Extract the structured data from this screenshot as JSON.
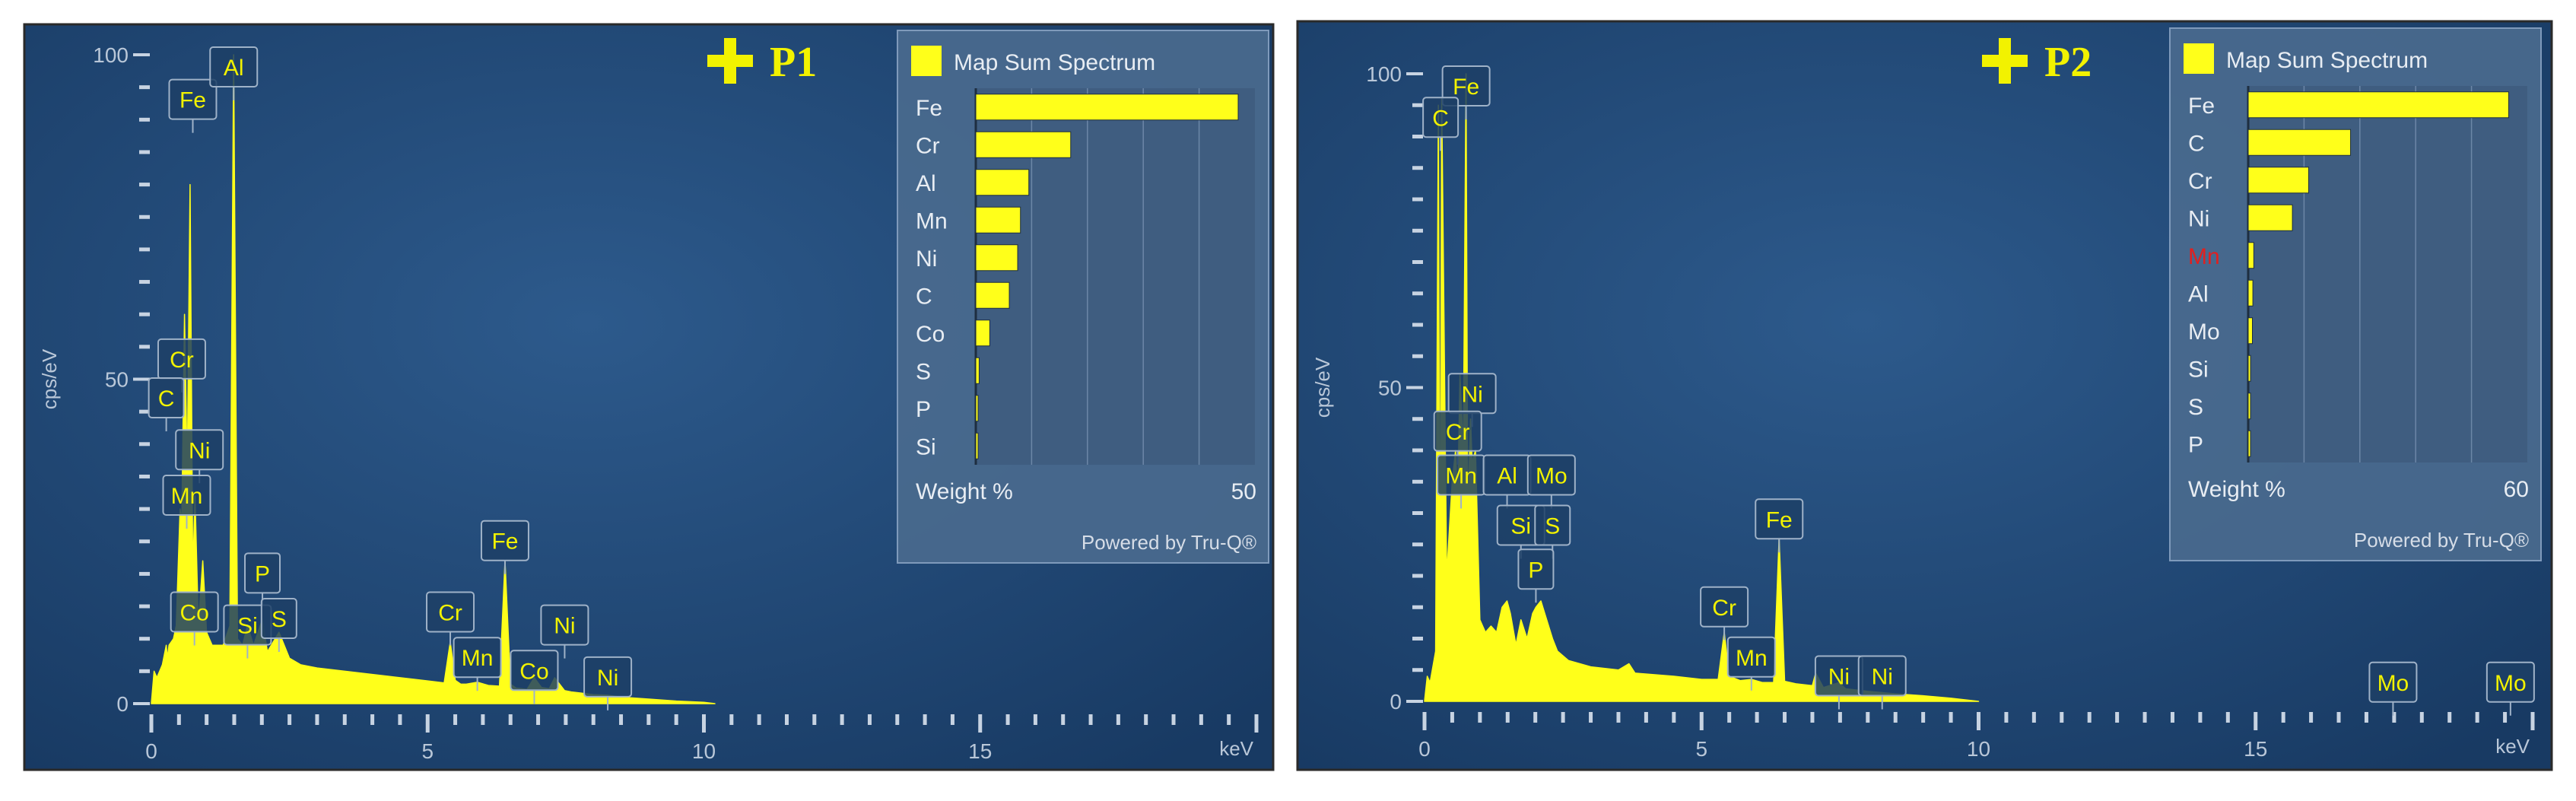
{
  "chart_data": [
    {
      "type": "area",
      "marker": "P1",
      "xlabel": "keV",
      "ylabel": "cps/eV",
      "xlim": [
        0,
        20
      ],
      "ylim": [
        0,
        100
      ],
      "xticks": [
        "0",
        "5",
        "10",
        "15"
      ],
      "yticks": [
        "0",
        "50",
        "100"
      ],
      "series": [
        {
          "x": [
            0,
            0.05,
            0.1,
            0.2,
            0.27,
            0.29,
            0.32,
            0.4,
            0.45,
            0.52,
            0.55,
            0.6,
            0.65,
            0.7,
            0.75,
            0.79,
            0.85,
            0.93,
            1.0,
            1.1,
            1.2,
            1.3,
            1.42,
            1.49,
            1.56,
            1.65,
            1.74,
            1.85,
            2.01,
            2.1,
            2.31,
            2.5,
            2.7,
            3.0,
            3.5,
            4.0,
            4.5,
            5.0,
            5.3,
            5.41,
            5.5,
            5.6,
            5.7,
            5.9,
            6.1,
            6.3,
            6.4,
            6.5,
            6.6,
            6.8,
            6.93,
            7.06,
            7.2,
            7.3,
            7.48,
            7.6,
            8.0,
            8.26,
            8.5,
            9.0,
            9.5,
            10.0,
            10.2
          ],
          "y": [
            0,
            5,
            4,
            6,
            9,
            7,
            9,
            10,
            12,
            30,
            28,
            60,
            35,
            80,
            20,
            32,
            12,
            22,
            11,
            9,
            9,
            9,
            12,
            100,
            10,
            9,
            12,
            9,
            13,
            8,
            11,
            7,
            6,
            5.5,
            5,
            4.5,
            4,
            3.5,
            3.2,
            9.5,
            3.6,
            3,
            3,
            3.3,
            2.8,
            2.7,
            22,
            3,
            2.4,
            2.2,
            4,
            2.5,
            2.3,
            4,
            2,
            1.8,
            1.4,
            1.3,
            1,
            0.7,
            0.4,
            0.2,
            0
          ]
        }
      ],
      "peak_labels": [
        {
          "element": "Fe",
          "x": 0.75,
          "y": 95
        },
        {
          "element": "Al",
          "x": 1.49,
          "y": 100
        },
        {
          "element": "Cr",
          "x": 0.55,
          "y": 55
        },
        {
          "element": "C",
          "x": 0.27,
          "y": 49
        },
        {
          "element": "Ni",
          "x": 0.87,
          "y": 41
        },
        {
          "element": "Mn",
          "x": 0.64,
          "y": 34
        },
        {
          "element": "P",
          "x": 2.01,
          "y": 22
        },
        {
          "element": "Co",
          "x": 0.78,
          "y": 16
        },
        {
          "element": "Si",
          "x": 1.74,
          "y": 14
        },
        {
          "element": "S",
          "x": 2.31,
          "y": 15
        },
        {
          "element": "Fe",
          "x": 6.4,
          "y": 27
        },
        {
          "element": "Cr",
          "x": 5.41,
          "y": 16
        },
        {
          "element": "Ni",
          "x": 7.48,
          "y": 14
        },
        {
          "element": "Mn",
          "x": 5.9,
          "y": 9
        },
        {
          "element": "Co",
          "x": 6.93,
          "y": 7
        },
        {
          "element": "Ni",
          "x": 8.26,
          "y": 6
        }
      ],
      "legend": {
        "title": "Map Sum Spectrum",
        "xlabel": "Weight %",
        "xmax_label": "50",
        "xmax": 50,
        "footer": "Powered by Tru-Q®",
        "categories": [
          "Fe",
          "Cr",
          "Al",
          "Mn",
          "Ni",
          "C",
          "Co",
          "S",
          "P",
          "Si"
        ],
        "values": [
          47,
          17,
          9.5,
          8,
          7.5,
          6,
          2.5,
          0.6,
          0.4,
          0.3
        ],
        "label_colors": [
          "#e8edf3",
          "#e8edf3",
          "#e8edf3",
          "#e8edf3",
          "#e8edf3",
          "#e8edf3",
          "#e8edf3",
          "#e8edf3",
          "#e8edf3",
          "#e8edf3"
        ]
      }
    },
    {
      "type": "area",
      "marker": "P2",
      "xlabel": "keV",
      "ylabel": "cps/eV",
      "xlim": [
        0,
        20
      ],
      "ylim": [
        0,
        100
      ],
      "xticks": [
        "0",
        "5",
        "10",
        "15"
      ],
      "yticks": [
        "0",
        "50",
        "100"
      ],
      "series": [
        {
          "x": [
            0,
            0.05,
            0.1,
            0.2,
            0.25,
            0.28,
            0.31,
            0.4,
            0.5,
            0.56,
            0.6,
            0.64,
            0.7,
            0.75,
            0.78,
            0.83,
            0.86,
            0.92,
            1.0,
            1.1,
            1.2,
            1.3,
            1.4,
            1.49,
            1.55,
            1.65,
            1.74,
            1.85,
            1.95,
            2.01,
            2.1,
            2.31,
            2.4,
            2.6,
            3.0,
            3.5,
            3.69,
            3.8,
            4.5,
            5.0,
            5.3,
            5.41,
            5.5,
            5.7,
            5.9,
            6.1,
            6.3,
            6.4,
            6.5,
            6.7,
            7.0,
            7.06,
            7.2,
            7.48,
            7.6,
            8.0,
            8.5,
            9.0,
            9.5,
            10.0
          ],
          "y": [
            0,
            4,
            3,
            8,
            95,
            10,
            96,
            20,
            35,
            40,
            32,
            52,
            40,
            100,
            30,
            45,
            38,
            40,
            13,
            11,
            12,
            11,
            15,
            16,
            14,
            9,
            13,
            10,
            14,
            15,
            16,
            10,
            8,
            6.5,
            5.5,
            5,
            6,
            4.5,
            4,
            3.5,
            3.5,
            11,
            4,
            3.3,
            3.5,
            3,
            3,
            26,
            3.2,
            2.8,
            2.5,
            4.5,
            2.2,
            3,
            2,
            1.6,
            1.2,
            0.9,
            0.5,
            0
          ]
        }
      ],
      "peak_labels": [
        {
          "element": "Fe",
          "x": 0.75,
          "y": 100
        },
        {
          "element": "C",
          "x": 0.29,
          "y": 95
        },
        {
          "element": "Ni",
          "x": 0.86,
          "y": 51
        },
        {
          "element": "Cr",
          "x": 0.6,
          "y": 45
        },
        {
          "element": "Mn",
          "x": 0.66,
          "y": 38
        },
        {
          "element": "Al",
          "x": 1.49,
          "y": 38
        },
        {
          "element": "Mo",
          "x": 2.29,
          "y": 38
        },
        {
          "element": "Si",
          "x": 1.74,
          "y": 30
        },
        {
          "element": "S",
          "x": 2.31,
          "y": 30
        },
        {
          "element": "P",
          "x": 2.01,
          "y": 23
        },
        {
          "element": "Fe",
          "x": 6.4,
          "y": 31
        },
        {
          "element": "Cr",
          "x": 5.41,
          "y": 17
        },
        {
          "element": "Mn",
          "x": 5.9,
          "y": 9
        },
        {
          "element": "Ni",
          "x": 7.48,
          "y": 6
        },
        {
          "element": "Ni",
          "x": 8.26,
          "y": 6
        },
        {
          "element": "Mo",
          "x": 17.48,
          "y": 5
        },
        {
          "element": "Mo",
          "x": 19.6,
          "y": 5
        }
      ],
      "legend": {
        "title": "Map Sum Spectrum",
        "xlabel": "Weight %",
        "xmax_label": "60",
        "xmax": 60,
        "footer": "Powered by Tru-Q®",
        "categories": [
          "Fe",
          "C",
          "Cr",
          "Ni",
          "Mn",
          "Al",
          "Mo",
          "Si",
          "S",
          "P"
        ],
        "values": [
          56,
          22,
          13,
          9.5,
          1.2,
          1.0,
          0.9,
          0.5,
          0.4,
          0.3
        ],
        "label_colors": [
          "#e8edf3",
          "#e8edf3",
          "#e8edf3",
          "#e8edf3",
          "#e02020",
          "#e8edf3",
          "#e8edf3",
          "#e8edf3",
          "#e8edf3",
          "#e8edf3"
        ]
      }
    }
  ]
}
